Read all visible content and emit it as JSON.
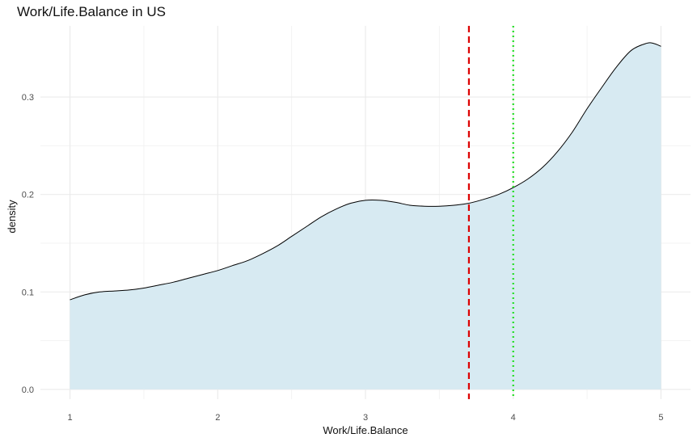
{
  "chart_data": {
    "type": "area",
    "title": "Work/Life.Balance in US",
    "xlabel": "Work/Life.Balance",
    "ylabel": "density",
    "xlim": [
      0.8,
      5.2
    ],
    "ylim": [
      -0.01,
      0.373
    ],
    "x_ticks": [
      1,
      2,
      3,
      4,
      5
    ],
    "x_tick_labels": [
      "1",
      "2",
      "3",
      "4",
      "5"
    ],
    "y_ticks": [
      0.0,
      0.1,
      0.2,
      0.3
    ],
    "y_tick_labels": [
      "0.0",
      "0.1",
      "0.2",
      "0.3"
    ],
    "grid": true,
    "series": [
      {
        "x": [
          1.0,
          1.1,
          1.2,
          1.3,
          1.4,
          1.5,
          1.6,
          1.7,
          1.8,
          1.9,
          2.0,
          2.1,
          2.2,
          2.3,
          2.4,
          2.5,
          2.6,
          2.7,
          2.8,
          2.9,
          3.0,
          3.1,
          3.2,
          3.3,
          3.4,
          3.5,
          3.6,
          3.7,
          3.8,
          3.9,
          4.0,
          4.1,
          4.2,
          4.3,
          4.4,
          4.5,
          4.6,
          4.7,
          4.8,
          4.9,
          4.95,
          5.0
        ],
        "y": [
          0.092,
          0.097,
          0.1,
          0.101,
          0.102,
          0.104,
          0.107,
          0.11,
          0.114,
          0.118,
          0.122,
          0.127,
          0.132,
          0.139,
          0.147,
          0.157,
          0.167,
          0.177,
          0.185,
          0.191,
          0.194,
          0.194,
          0.192,
          0.189,
          0.188,
          0.188,
          0.189,
          0.191,
          0.195,
          0.2,
          0.207,
          0.216,
          0.228,
          0.244,
          0.264,
          0.288,
          0.31,
          0.331,
          0.348,
          0.355,
          0.355,
          0.352
        ],
        "fill_color": "#d7eaf2",
        "line_color": "#000000"
      }
    ],
    "reference_lines": [
      {
        "x": 3.7,
        "color": "#dd0000",
        "style": "dashed"
      },
      {
        "x": 4.0,
        "color": "#22dd22",
        "style": "dotted"
      }
    ],
    "grid_color": "#ebebeb",
    "minor_grid_color": "#f3f3f3"
  }
}
